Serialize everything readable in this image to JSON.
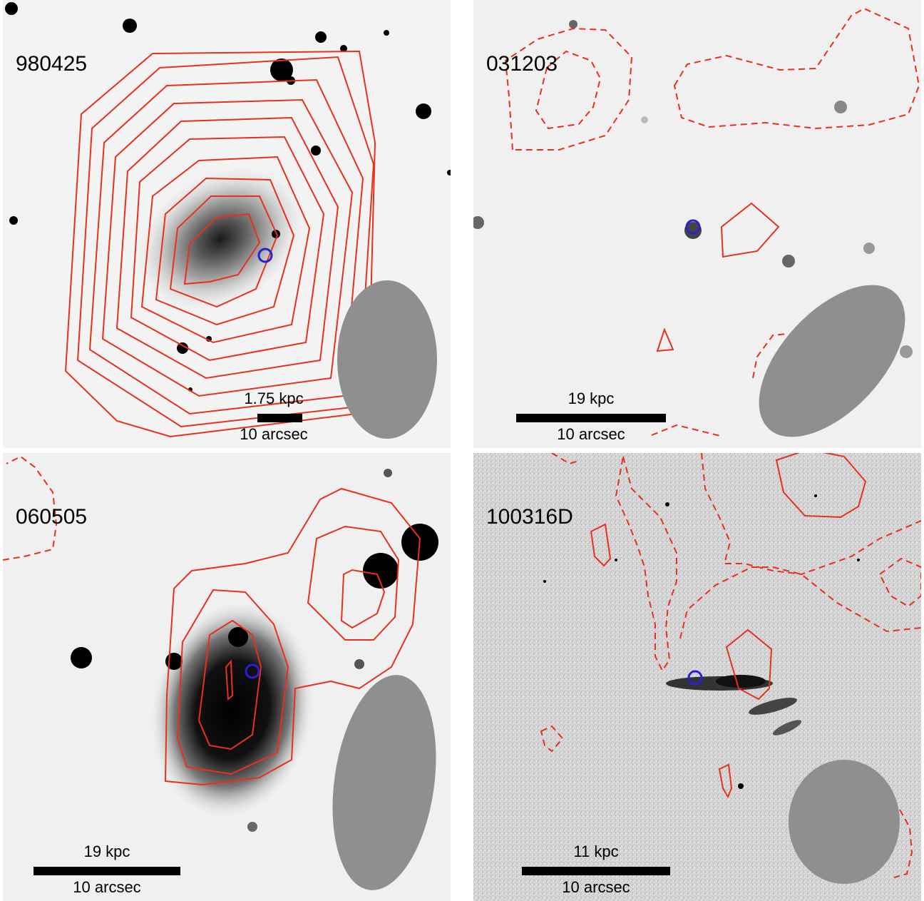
{
  "panels": [
    {
      "id": "980425",
      "label": "980425",
      "scale_phys": "1.75 kpc",
      "scale_ang": "10 arcsec"
    },
    {
      "id": "031203",
      "label": "031203",
      "scale_phys": "19 kpc",
      "scale_ang": "10 arcsec"
    },
    {
      "id": "060505",
      "label": "060505",
      "scale_phys": "19 kpc",
      "scale_ang": "10 arcsec"
    },
    {
      "id": "100316D",
      "label": "100316D",
      "scale_phys": "11 kpc",
      "scale_ang": "10 arcsec"
    }
  ],
  "colors": {
    "contour": "#e8301c",
    "grb_marker": "#2a1fd6",
    "beam": "#8f8f8f"
  }
}
